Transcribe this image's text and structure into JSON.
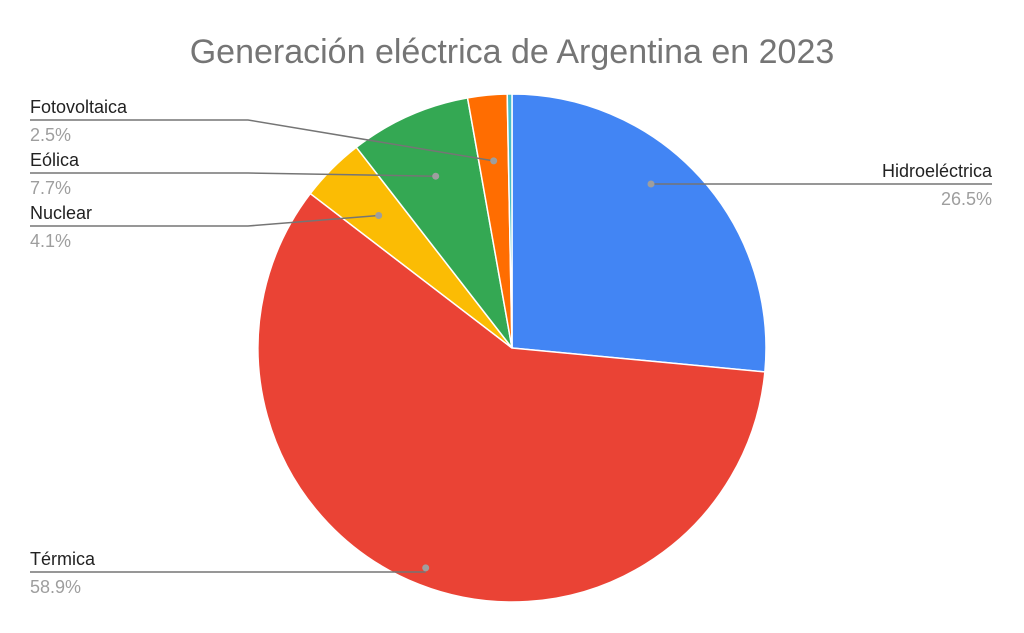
{
  "chart_data": {
    "type": "pie",
    "title": "Generación eléctrica de Argentina en 2023",
    "slices": [
      {
        "label": "Hidroeléctrica",
        "value": 26.5,
        "value_label": "26.5%",
        "color": "#4285F4"
      },
      {
        "label": "Térmica",
        "value": 58.9,
        "value_label": "58.9%",
        "color": "#EA4335"
      },
      {
        "label": "Nuclear",
        "value": 4.1,
        "value_label": "4.1%",
        "color": "#FBBC04"
      },
      {
        "label": "Eólica",
        "value": 7.7,
        "value_label": "7.7%",
        "color": "#34A853"
      },
      {
        "label": "Fotovoltaica",
        "value": 2.5,
        "value_label": "2.5%",
        "color": "#FF6D01"
      },
      {
        "label": "",
        "value": 0.3,
        "value_label": "",
        "color": "#46BDC6"
      }
    ],
    "start_angle": "12 o'clock",
    "direction": "clockwise",
    "legend": "none"
  }
}
